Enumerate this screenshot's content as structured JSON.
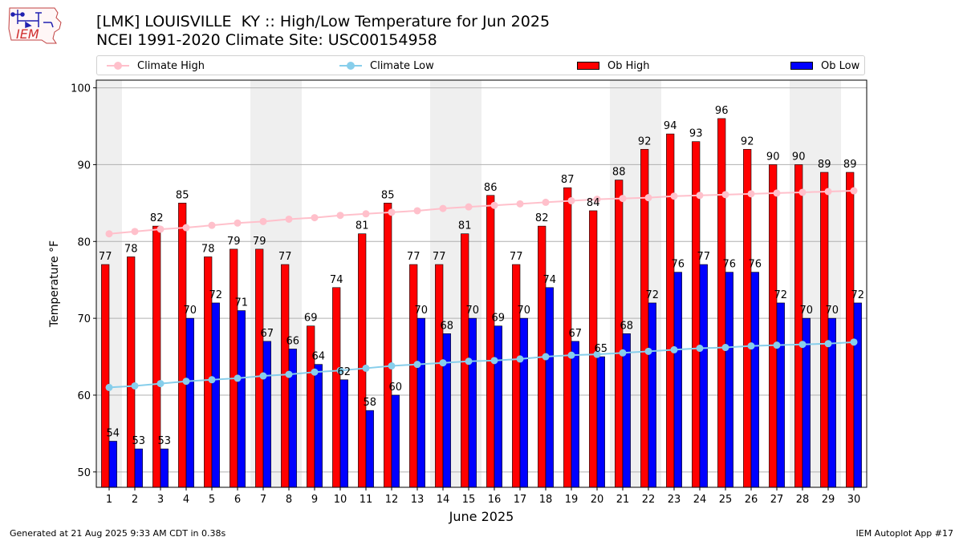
{
  "header": {
    "title_line1": "[LMK] LOUISVILLE  KY :: High/Low Temperature for Jun 2025",
    "title_line2": "NCEI 1991-2020 Climate Site: USC00154958"
  },
  "logo": {
    "text": "IEM",
    "icon": "iowa-state-outline-weather-logo"
  },
  "legend": {
    "items": [
      {
        "label": "Climate High",
        "kind": "line",
        "color": "#ffc0cb"
      },
      {
        "label": "Climate Low",
        "kind": "line",
        "color": "#87ceeb"
      },
      {
        "label": "Ob High",
        "kind": "bar",
        "color": "#ff0000"
      },
      {
        "label": "Ob Low",
        "kind": "bar",
        "color": "#0000ff"
      }
    ]
  },
  "footer": {
    "generated": "Generated at 21 Aug 2025 9:33 AM CDT in 0.38s",
    "app": "IEM Autoplot App #17"
  },
  "chart_data": {
    "type": "bar",
    "xlabel": "June 2025",
    "ylabel": "Temperature °F",
    "ylim": [
      48,
      101
    ],
    "yticks": [
      50,
      60,
      70,
      80,
      90,
      100
    ],
    "grid": true,
    "legend_position": "top",
    "weekend_shading": [
      [
        1,
        1
      ],
      [
        7,
        8
      ],
      [
        14,
        15
      ],
      [
        21,
        22
      ],
      [
        28,
        29
      ]
    ],
    "categories": [
      "1",
      "2",
      "3",
      "4",
      "5",
      "6",
      "7",
      "8",
      "9",
      "10",
      "11",
      "12",
      "13",
      "14",
      "15",
      "16",
      "17",
      "18",
      "19",
      "20",
      "21",
      "22",
      "23",
      "24",
      "25",
      "26",
      "27",
      "28",
      "29",
      "30"
    ],
    "series": [
      {
        "name": "Ob High",
        "type": "bar",
        "color": "#ff0000",
        "values": [
          77,
          78,
          82,
          85,
          78,
          79,
          79,
          77,
          69,
          74,
          81,
          85,
          77,
          77,
          81,
          86,
          77,
          82,
          87,
          84,
          88,
          92,
          94,
          93,
          96,
          92,
          90,
          90,
          89,
          89
        ]
      },
      {
        "name": "Ob Low",
        "type": "bar",
        "color": "#0000ff",
        "values": [
          54,
          53,
          53,
          70,
          72,
          71,
          67,
          66,
          64,
          62,
          58,
          60,
          70,
          68,
          70,
          69,
          70,
          74,
          67,
          65,
          68,
          72,
          76,
          77,
          76,
          76,
          72,
          70,
          70,
          72
        ]
      },
      {
        "name": "Climate High",
        "type": "line",
        "color": "#ffc0cb",
        "values": [
          81.0,
          81.3,
          81.6,
          81.8,
          82.1,
          82.4,
          82.6,
          82.9,
          83.1,
          83.4,
          83.6,
          83.8,
          84.0,
          84.3,
          84.5,
          84.7,
          84.9,
          85.1,
          85.3,
          85.5,
          85.6,
          85.7,
          85.9,
          86.0,
          86.1,
          86.2,
          86.3,
          86.4,
          86.5,
          86.6
        ]
      },
      {
        "name": "Climate Low",
        "type": "line",
        "color": "#87ceeb",
        "values": [
          61.0,
          61.2,
          61.5,
          61.8,
          62.0,
          62.2,
          62.5,
          62.7,
          63.0,
          63.2,
          63.5,
          63.8,
          64.0,
          64.2,
          64.4,
          64.5,
          64.7,
          65.0,
          65.2,
          65.3,
          65.5,
          65.7,
          65.9,
          66.1,
          66.2,
          66.4,
          66.5,
          66.6,
          66.7,
          66.9
        ]
      }
    ]
  }
}
